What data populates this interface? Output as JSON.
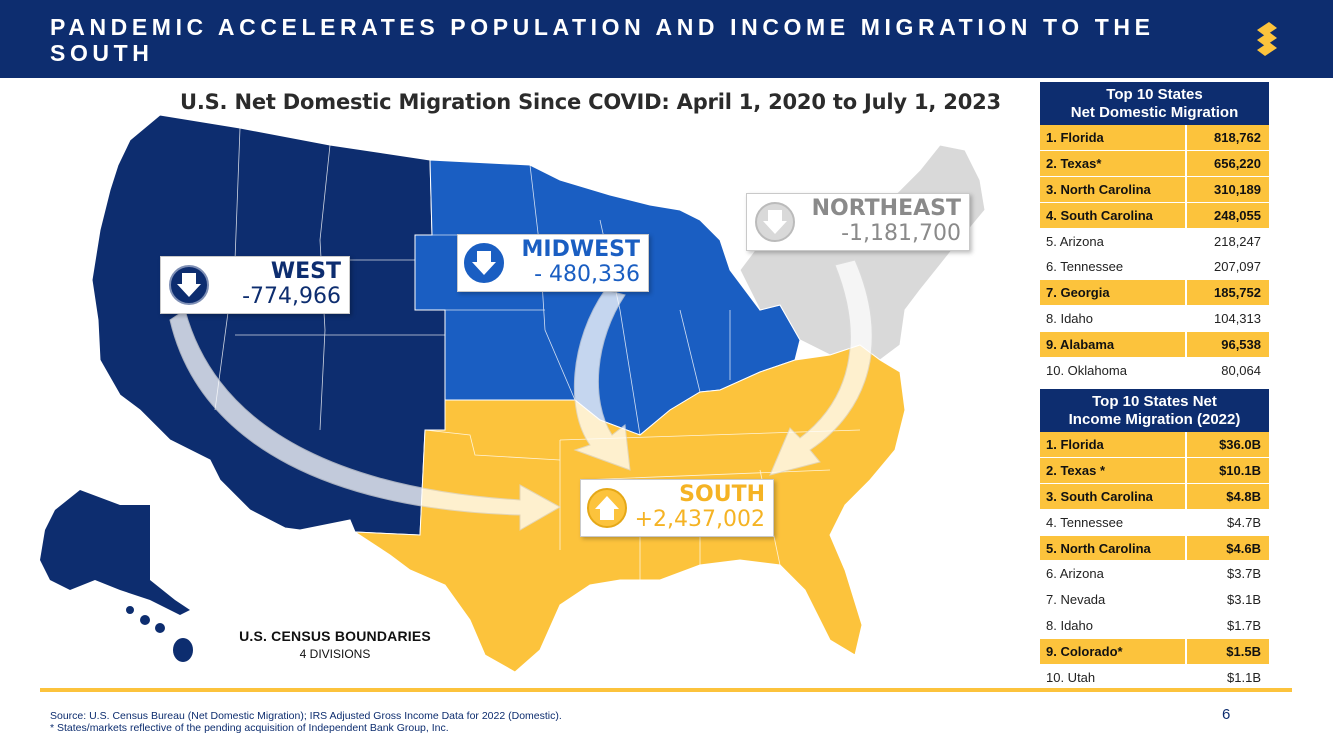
{
  "header": {
    "title": "PANDEMIC ACCELERATES POPULATION AND INCOME MIGRATION TO THE SOUTH"
  },
  "map": {
    "title": "U.S. Net Domestic Migration Since COVID: April 1, 2020 to July 1, 2023",
    "regions": {
      "west": {
        "name": "WEST",
        "value": "-774,966",
        "color": "#0d2d6f",
        "direction": "down"
      },
      "midwest": {
        "name": "MIDWEST",
        "value": "- 480,336",
        "color": "#1a5ec2",
        "direction": "down"
      },
      "northeast": {
        "name": "NORTHEAST",
        "value": "-1,181,700",
        "color": "#d9d9d9",
        "direction": "down"
      },
      "south": {
        "name": "SOUTH",
        "value": "+2,437,002",
        "color": "#fcc33c",
        "direction": "up"
      }
    },
    "legend": {
      "line1": "U.S. CENSUS BOUNDARIES",
      "line2": "4 DIVISIONS"
    }
  },
  "table1": {
    "header": [
      "Top 10 States",
      "Net Domestic Migration"
    ],
    "rows": [
      {
        "state": "1. Florida",
        "value": "818,762",
        "highlight": true
      },
      {
        "state": "2. Texas*",
        "value": "656,220",
        "highlight": true
      },
      {
        "state": "3. North Carolina",
        "value": "310,189",
        "highlight": true
      },
      {
        "state": "4. South Carolina",
        "value": "248,055",
        "highlight": true
      },
      {
        "state": "5. Arizona",
        "value": "218,247",
        "highlight": false
      },
      {
        "state": "6. Tennessee",
        "value": "207,097",
        "highlight": false
      },
      {
        "state": "7. Georgia",
        "value": "185,752",
        "highlight": true
      },
      {
        "state": "8. Idaho",
        "value": "104,313",
        "highlight": false
      },
      {
        "state": "9. Alabama",
        "value": "96,538",
        "highlight": true
      },
      {
        "state": "10. Oklahoma",
        "value": "80,064",
        "highlight": false
      }
    ]
  },
  "table2": {
    "header": [
      "Top 10 States Net",
      "Income Migration (2022)"
    ],
    "rows": [
      {
        "state": "1. Florida",
        "value": "$36.0B",
        "highlight": true
      },
      {
        "state": "2. Texas *",
        "value": "$10.1B",
        "highlight": true
      },
      {
        "state": "3. South Carolina",
        "value": "$4.8B",
        "highlight": true
      },
      {
        "state": "4. Tennessee",
        "value": "$4.7B",
        "highlight": false
      },
      {
        "state": "5. North Carolina",
        "value": "$4.6B",
        "highlight": true
      },
      {
        "state": "6. Arizona",
        "value": "$3.7B",
        "highlight": false
      },
      {
        "state": "7. Nevada",
        "value": "$3.1B",
        "highlight": false
      },
      {
        "state": "8. Idaho",
        "value": "$1.7B",
        "highlight": false
      },
      {
        "state": "9. Colorado*",
        "value": "$1.5B",
        "highlight": true
      },
      {
        "state": "10. Utah",
        "value": "$1.1B",
        "highlight": false
      }
    ]
  },
  "footer": {
    "source": "Source: U.S. Census Bureau (Net Domestic Migration); IRS Adjusted Gross Income Data for 2022 (Domestic).",
    "note": "* States/markets reflective of the pending acquisition of Independent Bank Group, Inc.",
    "page": "6"
  },
  "colors": {
    "navy": "#0d2d6f",
    "gold": "#fcc33c",
    "midwest_blue": "#1a5ec2",
    "northeast_gray": "#d9d9d9"
  },
  "icons": [
    "logo-icon",
    "down-arrow-icon",
    "up-arrow-icon"
  ]
}
